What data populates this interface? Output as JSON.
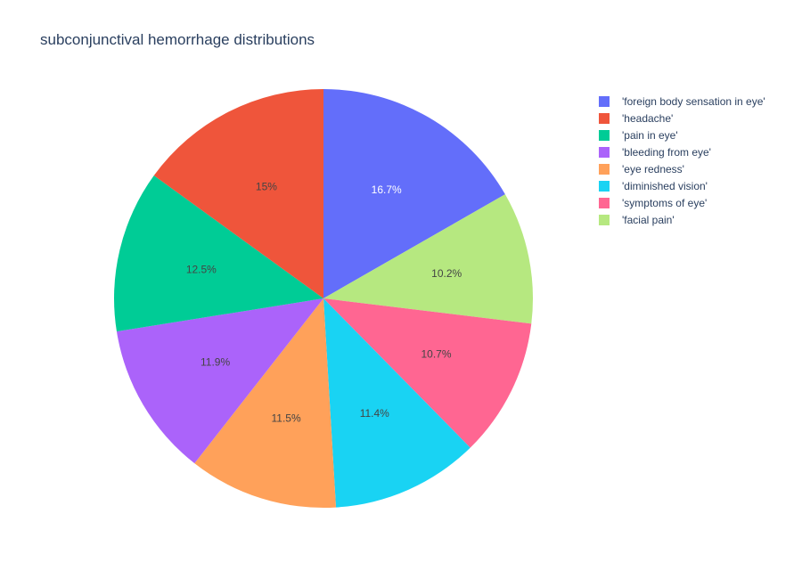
{
  "chart_data": {
    "type": "pie",
    "title": "subconjunctival hemorrhage distributions",
    "labels": [
      "'foreign body sensation in eye'",
      "'facial pain'",
      "'symptoms of eye'",
      "'diminished vision'",
      "'eye redness'",
      "'bleeding from eye'",
      "'pain in eye'",
      "'headache'"
    ],
    "values": [
      16.7,
      10.2,
      10.7,
      11.4,
      11.5,
      11.9,
      12.5,
      15.0
    ],
    "text_labels": [
      "16.7%",
      "10.2%",
      "10.7%",
      "11.4%",
      "11.5%",
      "11.9%",
      "12.5%",
      "15%"
    ],
    "colors": [
      "#636efa",
      "#b6e880",
      "#ff6692",
      "#19d3f3",
      "#ffa15a",
      "#ab63fa",
      "#00cc96",
      "#ef553b"
    ],
    "label_colors": [
      "#ffffff",
      "#444444",
      "#444444",
      "#444444",
      "#444444",
      "#444444",
      "#444444",
      "#444444"
    ],
    "direction": "clockwise",
    "start": "top",
    "legend": {
      "placement": "top-right",
      "entries": [
        {
          "label": "'foreign body sensation in eye'",
          "color": "#636efa"
        },
        {
          "label": "'headache'",
          "color": "#ef553b"
        },
        {
          "label": "'pain in eye'",
          "color": "#00cc96"
        },
        {
          "label": "'bleeding from eye'",
          "color": "#ab63fa"
        },
        {
          "label": "'eye redness'",
          "color": "#ffa15a"
        },
        {
          "label": "'diminished vision'",
          "color": "#19d3f3"
        },
        {
          "label": "'symptoms of eye'",
          "color": "#ff6692"
        },
        {
          "label": "'facial pain'",
          "color": "#b6e880"
        }
      ]
    }
  }
}
